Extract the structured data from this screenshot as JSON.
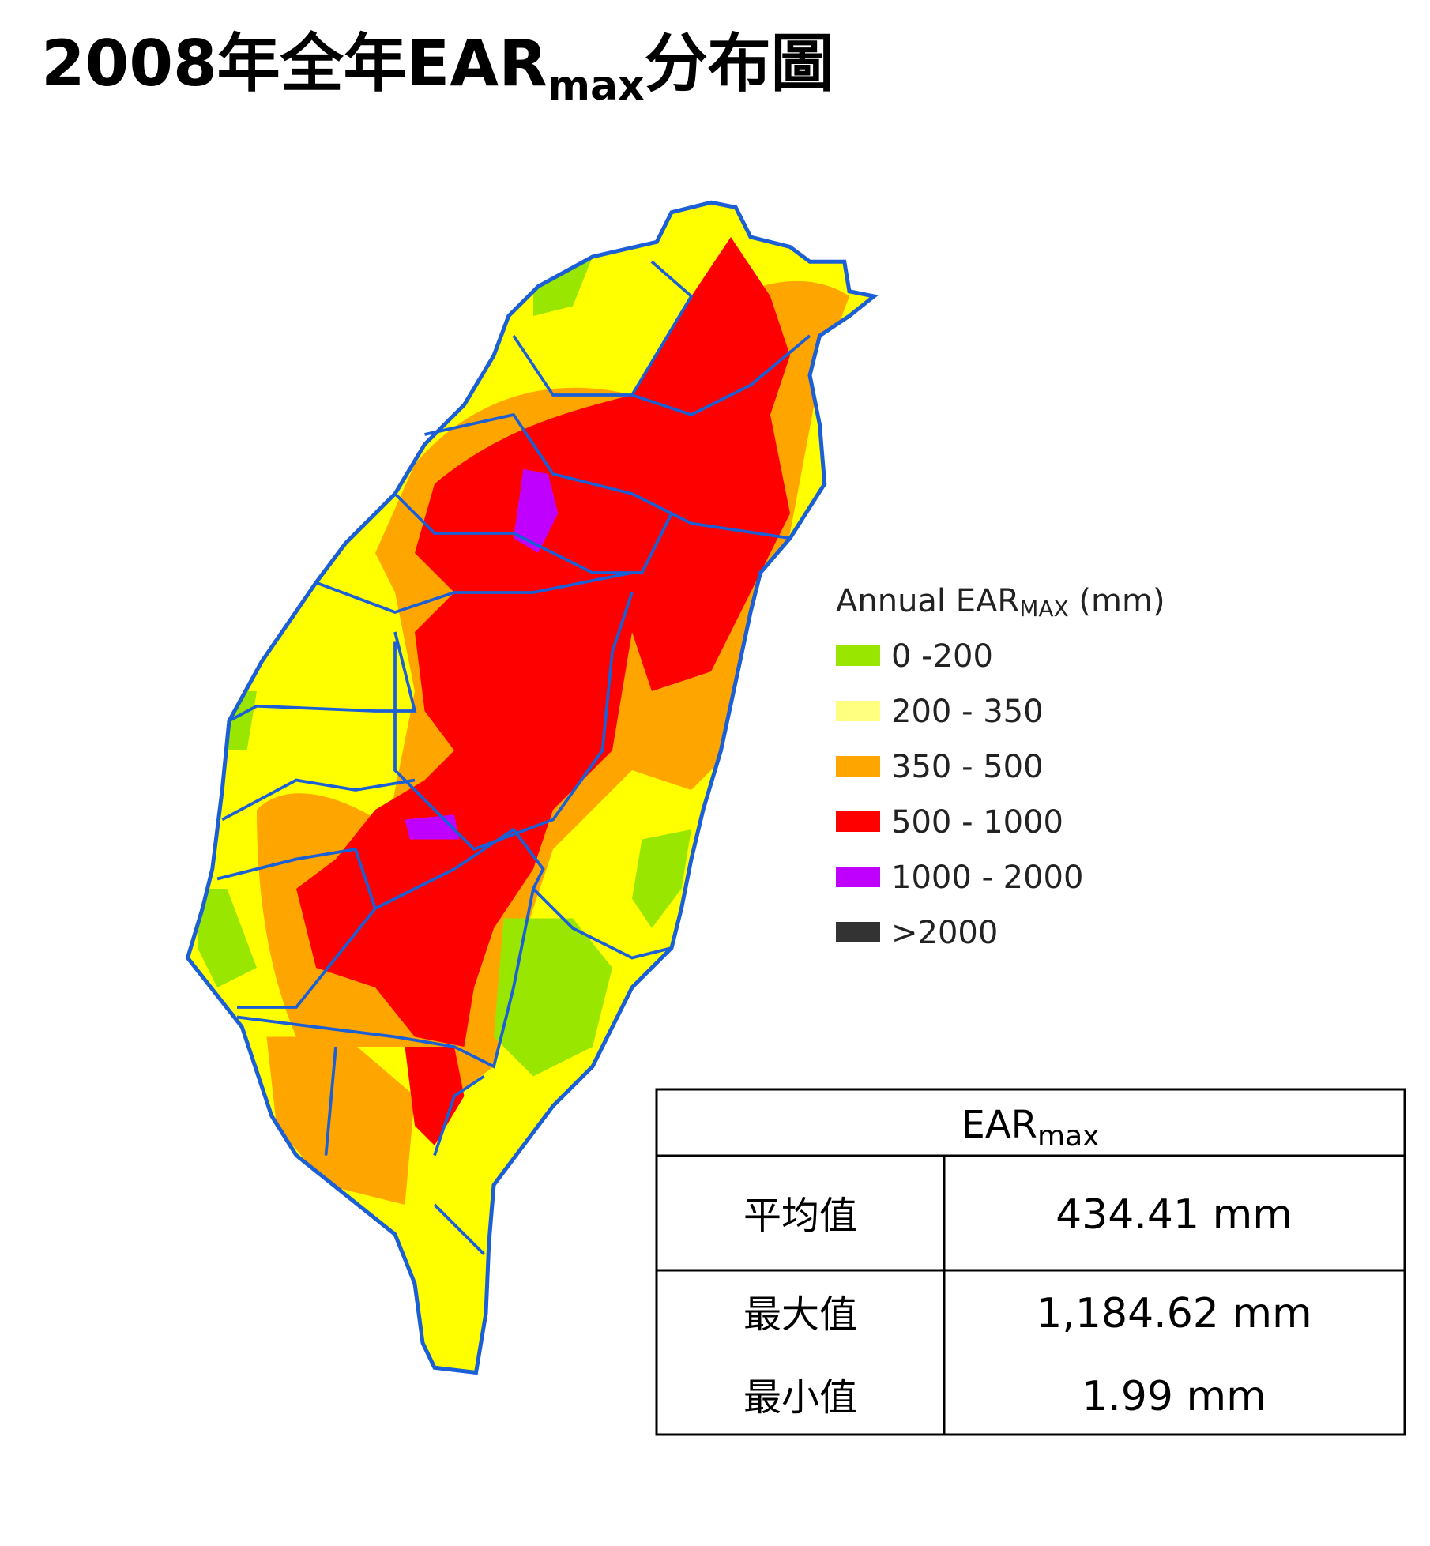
{
  "title": {
    "main": "2008年全年EAR",
    "sub": "max",
    "tail": "分布圖"
  },
  "legend": {
    "title": "Annual EAR",
    "title_sub": "MAX",
    "title_unit": " (mm)",
    "items": [
      {
        "label": "0 -200",
        "color": "#99e600"
      },
      {
        "label": "200 - 350",
        "color": "#ffff80"
      },
      {
        "label": "350 - 500",
        "color": "#ffa500"
      },
      {
        "label": "500 - 1000",
        "color": "#ff0000"
      },
      {
        "label": "1000 - 2000",
        "color": "#c000ff"
      },
      {
        "label": ">2000",
        "color": "#333333"
      }
    ]
  },
  "table": {
    "header": "EAR",
    "header_sub": "max",
    "rows": [
      [
        "平均值",
        "434.41 mm"
      ],
      [
        "最大值",
        "1,184.62 mm"
      ],
      [
        "最小值",
        "1.99 mm"
      ]
    ]
  }
}
